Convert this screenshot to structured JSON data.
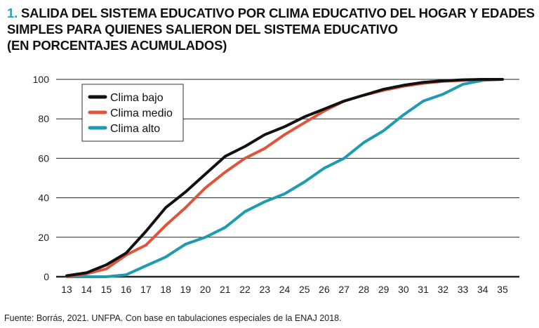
{
  "title": {
    "number": "1.",
    "lines": [
      "SALIDA DEL SISTEMA EDUCATIVO POR CLIMA EDUCATIVO DEL HOGAR Y EDADES",
      "SIMPLES PARA QUIENES SALIERON DEL SISTEMA EDUCATIVO",
      "(EN PORCENTAJES ACUMULADOS)"
    ]
  },
  "source": "Fuente: Borrás, 2021. UNFPA. Con base en tabulaciones especiales de la ENAJ 2018.",
  "chart_data": {
    "type": "line",
    "title": "SALIDA DEL SISTEMA EDUCATIVO POR CLIMA EDUCATIVO DEL HOGAR Y EDADES SIMPLES PARA QUIENES SALIERON DEL SISTEMA EDUCATIVO (EN PORCENTAJES ACUMULADOS)",
    "xlabel": "",
    "ylabel": "",
    "x": [
      13,
      14,
      15,
      16,
      17,
      18,
      19,
      20,
      21,
      22,
      23,
      24,
      25,
      26,
      27,
      28,
      29,
      30,
      31,
      32,
      33,
      34,
      35
    ],
    "ylim": [
      0,
      100
    ],
    "yticks": [
      0,
      20,
      40,
      60,
      80,
      100
    ],
    "grid": true,
    "legend_position": "top-left",
    "series": [
      {
        "name": "Clima bajo",
        "color": "#111111",
        "values": [
          0.5,
          2,
          6,
          12,
          23,
          35,
          43,
          52,
          61,
          66,
          72,
          76,
          81,
          85,
          89,
          92,
          95,
          97,
          98.5,
          99.3,
          99.8,
          100,
          100
        ]
      },
      {
        "name": "Clima medio",
        "color": "#e0543c",
        "values": [
          0,
          1.5,
          4,
          11,
          16,
          26,
          35,
          45,
          53,
          60,
          65,
          72,
          78,
          84,
          89,
          92,
          94.5,
          96.5,
          98,
          99,
          99.5,
          100,
          100
        ]
      },
      {
        "name": "Clima alto",
        "color": "#1f9bb0",
        "values": [
          0,
          0,
          0,
          1,
          5.5,
          10,
          16.5,
          20,
          25,
          33,
          38,
          42,
          48,
          55,
          60,
          68,
          74,
          82,
          89,
          92.5,
          97.5,
          99.5,
          100
        ]
      }
    ]
  }
}
